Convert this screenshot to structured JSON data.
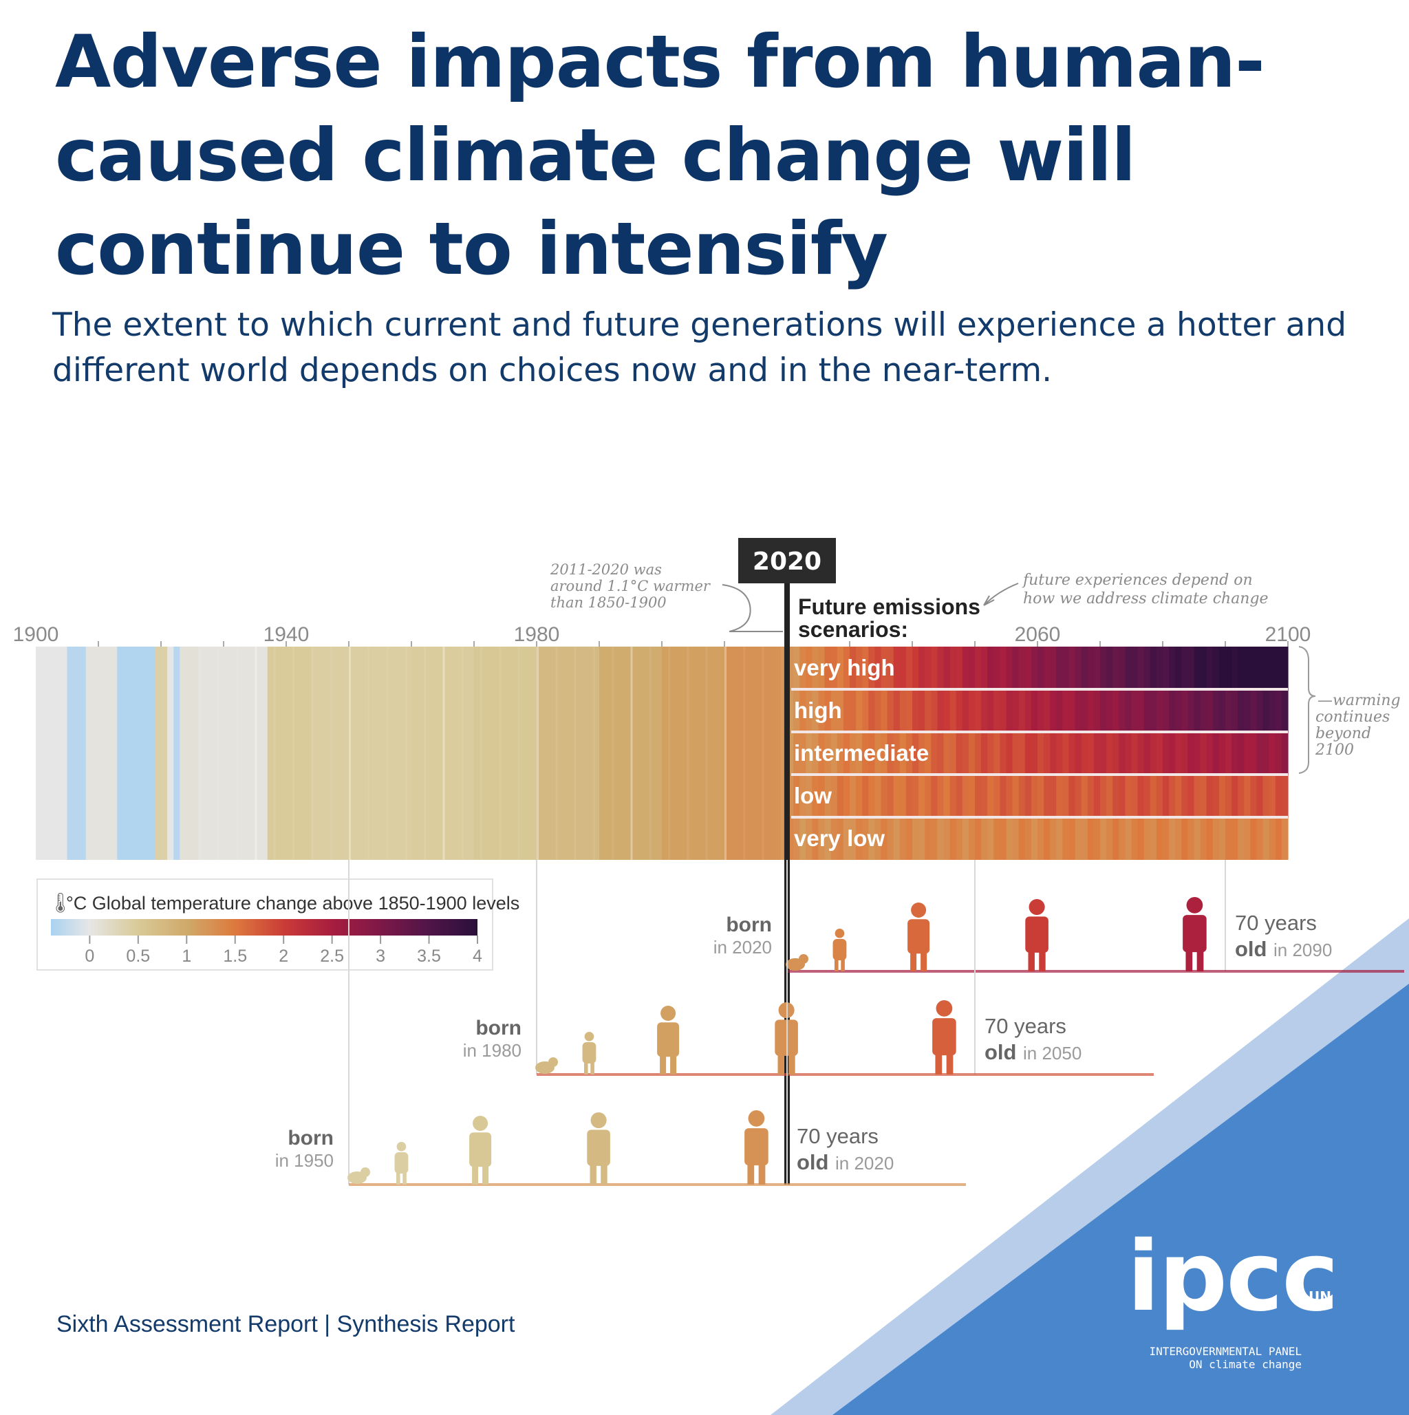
{
  "title": "Adverse impacts from human-caused climate change will continue to intensify",
  "subtitle": "The extent to which current and future generations will experience a hotter and different world depends on choices now and in the near-term.",
  "footer": "Sixth Assessment Report | Synthesis Report",
  "logo": {
    "name": "ipcc",
    "subtitle": "INTERGOVERNMENTAL PANEL ON climate change",
    "partners": "UN"
  },
  "colors": {
    "title": "#0d3466",
    "background_triangle": "#4a86cc",
    "background_triangle_light": "#b7cde9",
    "marker": "#222222"
  },
  "chart_data": {
    "type": "heatmap",
    "x_ticks": [
      1900,
      1940,
      1980,
      2060,
      2100
    ],
    "marker_year": 2020,
    "marker_label": "2020",
    "annotations": {
      "past": "2011-2020 was around 1.1°C warmer than 1850-1900",
      "future_heading": "Future emissions scenarios:",
      "future_note": "future experiences depend on how we address climate change",
      "beyond": "warming continues beyond 2100"
    },
    "colorbar": {
      "label": "°C Global temperature change above 1850-1900 levels",
      "ticks": [
        "0",
        "0.5",
        "1",
        "1.5",
        "2",
        "2.5",
        "3",
        "3.5",
        "4"
      ],
      "range": [
        -0.4,
        4
      ]
    },
    "historical_stripes": [
      {
        "from": 1900,
        "to": 1905,
        "value": 0.0
      },
      {
        "from": 1905,
        "to": 1908,
        "value": -0.3
      },
      {
        "from": 1908,
        "to": 1913,
        "value": 0.05
      },
      {
        "from": 1913,
        "to": 1919,
        "value": -0.35
      },
      {
        "from": 1919,
        "to": 1921,
        "value": 0.4
      },
      {
        "from": 1921,
        "to": 1922,
        "value": 0.0
      },
      {
        "from": 1922,
        "to": 1923,
        "value": -0.3
      },
      {
        "from": 1923,
        "to": 1926,
        "value": 0.1
      },
      {
        "from": 1926,
        "to": 1937,
        "value": 0.05
      },
      {
        "from": 1937,
        "to": 1944,
        "value": 0.5
      },
      {
        "from": 1944,
        "to": 1952,
        "value": 0.45
      },
      {
        "from": 1952,
        "to": 1960,
        "value": 0.45
      },
      {
        "from": 1960,
        "to": 1970,
        "value": 0.48
      },
      {
        "from": 1970,
        "to": 1980,
        "value": 0.55
      },
      {
        "from": 1980,
        "to": 1990,
        "value": 0.75
      },
      {
        "from": 1990,
        "to": 2000,
        "value": 0.95
      },
      {
        "from": 2000,
        "to": 2010,
        "value": 1.1
      },
      {
        "from": 2010,
        "to": 2020,
        "value": 1.25
      }
    ],
    "scenarios": [
      {
        "name": "very high",
        "end_value": 4.4
      },
      {
        "name": "high",
        "end_value": 3.6
      },
      {
        "name": "intermediate",
        "end_value": 2.7
      },
      {
        "name": "low",
        "end_value": 1.8
      },
      {
        "name": "very low",
        "end_value": 1.4
      }
    ],
    "generations": [
      {
        "born_label": "born",
        "born_year_text": "in 2020",
        "born": 2020,
        "age_label": "70 years",
        "old_label": "old",
        "old_year_text": "in 2090",
        "until": 2090
      },
      {
        "born_label": "born",
        "born_year_text": "in 1980",
        "born": 1980,
        "age_label": "70 years",
        "old_label": "old",
        "old_year_text": "in 2050",
        "until": 2050
      },
      {
        "born_label": "born",
        "born_year_text": "in 1950",
        "born": 1950,
        "age_label": "70 years",
        "old_label": "old",
        "old_year_text": "in 2020",
        "until": 2020
      }
    ]
  }
}
